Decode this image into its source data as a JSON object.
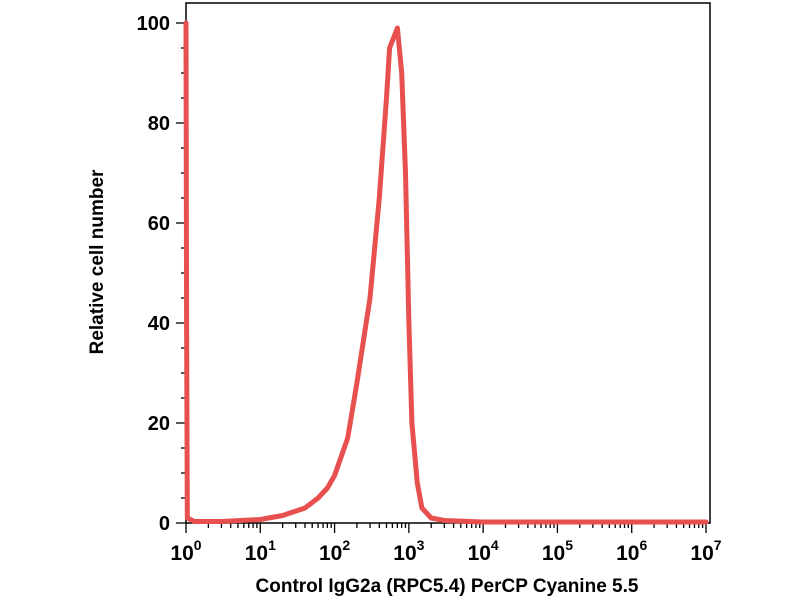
{
  "chart_data": {
    "type": "line",
    "title": "",
    "xlabel": "Control IgG2a (RPC5.4) PerCP Cyanine 5.5",
    "ylabel": "Relative cell number",
    "x_scale": "log",
    "xlim": [
      1,
      10000000
    ],
    "ylim": [
      0,
      100
    ],
    "grid": false,
    "legend": "none",
    "line_color": "#e8504f",
    "ytick_labels": [
      "0",
      "20",
      "40",
      "60",
      "80",
      "100"
    ],
    "ytick_values": [
      0,
      20,
      40,
      60,
      80,
      100
    ],
    "xtick_labels": [
      {
        "value": 1,
        "base": "10",
        "exp": "0"
      },
      {
        "value": 10,
        "base": "10",
        "exp": "1"
      },
      {
        "value": 100,
        "base": "10",
        "exp": "2"
      },
      {
        "value": 1000,
        "base": "10",
        "exp": "3"
      },
      {
        "value": 10000,
        "base": "10",
        "exp": "4"
      },
      {
        "value": 100000,
        "base": "10",
        "exp": "5"
      },
      {
        "value": 1000000,
        "base": "10",
        "exp": "6"
      },
      {
        "value": 10000000,
        "base": "10",
        "exp": "7"
      }
    ],
    "series": [
      {
        "values": [
          [
            1.0,
            100
          ],
          [
            1.02,
            40
          ],
          [
            1.04,
            1
          ],
          [
            1.3,
            0.3
          ],
          [
            3,
            0.3
          ],
          [
            10,
            0.7
          ],
          [
            20,
            1.5
          ],
          [
            40,
            3
          ],
          [
            60,
            5
          ],
          [
            80,
            7
          ],
          [
            100,
            9.5
          ],
          [
            150,
            17
          ],
          [
            200,
            28
          ],
          [
            300,
            45
          ],
          [
            400,
            65
          ],
          [
            500,
            85
          ],
          [
            550,
            95
          ],
          [
            700,
            99
          ],
          [
            800,
            90
          ],
          [
            900,
            70
          ],
          [
            1000,
            40
          ],
          [
            1100,
            20
          ],
          [
            1300,
            8
          ],
          [
            1500,
            3
          ],
          [
            2000,
            1
          ],
          [
            3000,
            0.5
          ],
          [
            10000,
            0.2
          ],
          [
            10000000,
            0.2
          ]
        ]
      }
    ]
  }
}
